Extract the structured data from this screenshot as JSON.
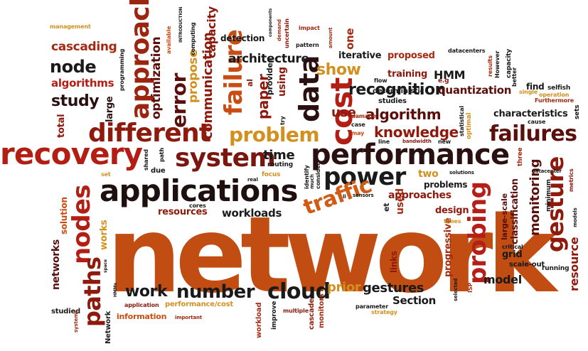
{
  "palette": {
    "dark_red": "#8e1a0e",
    "maroon": "#5a0f0c",
    "orange_red": "#c94d12",
    "brown_red": "#a52a12",
    "gold": "#d2911f",
    "black": "#1a1a1a",
    "crimson": "#b51f17"
  },
  "words": [
    "network",
    "performance",
    "applications",
    "recovery",
    "system",
    "different",
    "power",
    "cost",
    "data",
    "approach",
    "failure",
    "failures",
    "traffic",
    "probing",
    "gesture",
    "nodes",
    "paths",
    "cloud",
    "number",
    "work",
    "problem",
    "knowledge",
    "algorithm",
    "recognition",
    "show",
    "node",
    "study",
    "error",
    "communication",
    "cascading",
    "algorithms",
    "optimization",
    "propose",
    "paper",
    "architecture",
    "time",
    "resources",
    "workloads",
    "monitoring",
    "resource",
    "model",
    "classification",
    "characteristics",
    "approaches",
    "problems",
    "design",
    "gestures",
    "Section",
    "prior",
    "HMM",
    "training",
    "proposed",
    "iterative",
    "one",
    "detection",
    "management",
    "total",
    "large",
    "networks",
    "works",
    "solution",
    "use",
    "used",
    "two",
    "links",
    "progressive",
    "grid",
    "scale-out",
    "running",
    "information",
    "performance/cost",
    "application",
    "studied",
    "Network",
    "workload",
    "cascade",
    "monitors",
    "improve",
    "multiple",
    "strategy",
    "parameter",
    "ISP",
    "selected",
    "times",
    "large-scale",
    "critical",
    "minimum",
    "metrics",
    "models",
    "sets",
    "cause",
    "find",
    "selfish",
    "operation",
    "Furthermore",
    "single",
    "better",
    "capacity",
    "results",
    "However",
    "datacenters",
    "quantization",
    "deterministic",
    "studies",
    "e.g",
    "flow",
    "line",
    "bandwidth",
    "new",
    "may",
    "case",
    "damage",
    "try",
    "provides",
    "using",
    "al",
    "et",
    "consider",
    "identify",
    "much",
    "real",
    "focus",
    "routing",
    "shared",
    "path",
    "due",
    "set",
    "solutions",
    "datacenter",
    "three",
    "optimal",
    "statistical",
    "components",
    "demand",
    "impact",
    "uncertain",
    "pattern",
    "amount",
    "computing",
    "INTRODUCTION",
    "available",
    "capacity",
    "programming",
    "cores",
    "sensors",
    "space",
    "HMMs",
    "important",
    "systems",
    "ll"
  ]
}
